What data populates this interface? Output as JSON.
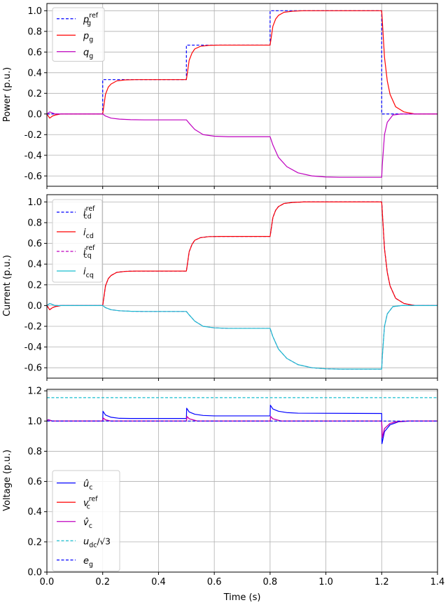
{
  "figure": {
    "xlabel": "Time (s)",
    "xticks": [
      "0.0",
      "0.2",
      "0.4",
      "0.6",
      "0.8",
      "1.0",
      "1.2",
      "1.4"
    ],
    "xlim": [
      0,
      1.4
    ]
  },
  "chart_data": [
    {
      "type": "line",
      "ylabel": "Power (p.u.)",
      "xlim": [
        0,
        1.4
      ],
      "ylim": [
        -0.7,
        1.07
      ],
      "yticks": [
        "-0.6",
        "-0.4",
        "-0.2",
        "0.0",
        "0.2",
        "0.4",
        "0.6",
        "0.8",
        "1.0"
      ],
      "grid": true,
      "legend_position": "upper-left",
      "series": [
        {
          "name": "p_g^ref",
          "color": "#0000ff",
          "dashed": true,
          "x": [
            0.0,
            0.2,
            0.2,
            0.5,
            0.5,
            0.8,
            0.8,
            1.2,
            1.2,
            1.4
          ],
          "y": [
            0.0,
            0.0,
            0.333,
            0.333,
            0.667,
            0.667,
            1.0,
            1.0,
            0.0,
            0.0
          ]
        },
        {
          "name": "p_g",
          "color": "#ff0000",
          "dashed": false,
          "x": [
            0.0,
            0.01,
            0.02,
            0.03,
            0.05,
            0.2,
            0.21,
            0.22,
            0.23,
            0.25,
            0.28,
            0.32,
            0.4,
            0.5,
            0.51,
            0.52,
            0.53,
            0.55,
            0.58,
            0.62,
            0.7,
            0.8,
            0.81,
            0.82,
            0.83,
            0.85,
            0.88,
            0.92,
            1.0,
            1.2,
            1.21,
            1.22,
            1.23,
            1.25,
            1.28,
            1.32,
            1.4
          ],
          "y": [
            0.0,
            -0.04,
            -0.02,
            -0.01,
            0.0,
            0.0,
            0.19,
            0.26,
            0.29,
            0.32,
            0.33,
            0.333,
            0.333,
            0.333,
            0.52,
            0.59,
            0.63,
            0.655,
            0.665,
            0.667,
            0.667,
            0.667,
            0.85,
            0.92,
            0.955,
            0.985,
            0.995,
            1.0,
            1.0,
            1.0,
            0.55,
            0.32,
            0.19,
            0.07,
            0.02,
            0.0,
            0.0
          ]
        },
        {
          "name": "q_g",
          "color": "#bf00bf",
          "dashed": false,
          "x": [
            0.0,
            0.01,
            0.03,
            0.2,
            0.21,
            0.23,
            0.26,
            0.3,
            0.35,
            0.5,
            0.51,
            0.53,
            0.56,
            0.6,
            0.65,
            0.7,
            0.8,
            0.81,
            0.83,
            0.86,
            0.9,
            0.95,
            1.0,
            1.05,
            1.2,
            1.202,
            1.21,
            1.22,
            1.24,
            1.27,
            1.4
          ],
          "y": [
            0.0,
            0.02,
            0.0,
            0.0,
            -0.02,
            -0.04,
            -0.05,
            -0.055,
            -0.057,
            -0.057,
            -0.09,
            -0.15,
            -0.2,
            -0.215,
            -0.22,
            -0.22,
            -0.22,
            -0.3,
            -0.42,
            -0.51,
            -0.57,
            -0.6,
            -0.61,
            -0.613,
            -0.613,
            -0.5,
            -0.2,
            -0.08,
            -0.01,
            0.0,
            0.0
          ]
        }
      ]
    },
    {
      "type": "line",
      "ylabel": "Current (p.u.)",
      "xlim": [
        0,
        1.4
      ],
      "ylim": [
        -0.7,
        1.07
      ],
      "yticks": [
        "-0.6",
        "-0.4",
        "-0.2",
        "0.0",
        "0.2",
        "0.4",
        "0.6",
        "0.8",
        "1.0"
      ],
      "grid": true,
      "legend_position": "upper-left",
      "series": [
        {
          "name": "i_cd^ref",
          "color": "#0000ff",
          "dashed": true,
          "x": [
            0.0,
            0.01,
            0.02,
            0.03,
            0.05,
            0.2,
            0.21,
            0.22,
            0.23,
            0.25,
            0.28,
            0.32,
            0.4,
            0.5,
            0.51,
            0.52,
            0.53,
            0.55,
            0.58,
            0.62,
            0.7,
            0.8,
            0.81,
            0.82,
            0.83,
            0.85,
            0.88,
            0.92,
            1.0,
            1.2,
            1.21,
            1.22,
            1.23,
            1.25,
            1.28,
            1.32,
            1.4
          ],
          "y": [
            0.0,
            -0.04,
            -0.02,
            -0.01,
            0.0,
            0.0,
            0.19,
            0.26,
            0.29,
            0.32,
            0.33,
            0.333,
            0.333,
            0.333,
            0.52,
            0.59,
            0.63,
            0.655,
            0.665,
            0.667,
            0.667,
            0.667,
            0.85,
            0.92,
            0.955,
            0.985,
            0.995,
            1.0,
            1.0,
            1.0,
            0.55,
            0.32,
            0.19,
            0.07,
            0.02,
            0.0,
            0.0
          ]
        },
        {
          "name": "i_cd",
          "color": "#ff0000",
          "dashed": false,
          "x": [
            0.0,
            0.01,
            0.02,
            0.03,
            0.05,
            0.2,
            0.21,
            0.22,
            0.23,
            0.25,
            0.28,
            0.32,
            0.4,
            0.5,
            0.51,
            0.52,
            0.53,
            0.55,
            0.58,
            0.62,
            0.7,
            0.8,
            0.81,
            0.82,
            0.83,
            0.85,
            0.88,
            0.92,
            1.0,
            1.2,
            1.21,
            1.22,
            1.23,
            1.25,
            1.28,
            1.32,
            1.4
          ],
          "y": [
            0.0,
            -0.04,
            -0.02,
            -0.01,
            0.0,
            0.0,
            0.19,
            0.26,
            0.29,
            0.32,
            0.33,
            0.333,
            0.333,
            0.333,
            0.52,
            0.59,
            0.63,
            0.655,
            0.665,
            0.667,
            0.667,
            0.667,
            0.85,
            0.92,
            0.955,
            0.985,
            0.995,
            1.0,
            1.0,
            1.0,
            0.55,
            0.32,
            0.19,
            0.07,
            0.02,
            0.0,
            0.0
          ]
        },
        {
          "name": "i_cq^ref",
          "color": "#bf00bf",
          "dashed": true,
          "x": [
            0.0,
            0.01,
            0.03,
            0.2,
            0.21,
            0.23,
            0.26,
            0.3,
            0.35,
            0.5,
            0.51,
            0.53,
            0.56,
            0.6,
            0.65,
            0.7,
            0.8,
            0.81,
            0.83,
            0.86,
            0.9,
            0.95,
            1.0,
            1.05,
            1.2,
            1.202,
            1.21,
            1.22,
            1.24,
            1.27,
            1.4
          ],
          "y": [
            0.0,
            0.02,
            0.0,
            0.0,
            -0.02,
            -0.04,
            -0.05,
            -0.055,
            -0.057,
            -0.057,
            -0.09,
            -0.15,
            -0.2,
            -0.215,
            -0.22,
            -0.22,
            -0.22,
            -0.3,
            -0.42,
            -0.51,
            -0.57,
            -0.6,
            -0.61,
            -0.613,
            -0.613,
            -0.5,
            -0.2,
            -0.08,
            -0.01,
            0.0,
            0.0
          ]
        },
        {
          "name": "i_cq",
          "color": "#17becf",
          "dashed": false,
          "x": [
            0.0,
            0.01,
            0.03,
            0.2,
            0.21,
            0.23,
            0.26,
            0.3,
            0.35,
            0.5,
            0.51,
            0.53,
            0.56,
            0.6,
            0.65,
            0.7,
            0.8,
            0.81,
            0.83,
            0.86,
            0.9,
            0.95,
            1.0,
            1.05,
            1.2,
            1.202,
            1.21,
            1.22,
            1.24,
            1.27,
            1.4
          ],
          "y": [
            0.0,
            0.02,
            0.0,
            0.0,
            -0.02,
            -0.04,
            -0.05,
            -0.055,
            -0.057,
            -0.057,
            -0.09,
            -0.15,
            -0.2,
            -0.215,
            -0.22,
            -0.22,
            -0.22,
            -0.3,
            -0.42,
            -0.51,
            -0.57,
            -0.6,
            -0.61,
            -0.613,
            -0.613,
            -0.5,
            -0.2,
            -0.08,
            -0.01,
            0.0,
            0.0
          ]
        }
      ]
    },
    {
      "type": "line",
      "ylabel": "Voltage (p.u.)",
      "xlim": [
        0,
        1.4
      ],
      "ylim": [
        0,
        1.21
      ],
      "yticks": [
        "0.0",
        "0.2",
        "0.4",
        "0.6",
        "0.8",
        "1.0",
        "1.2"
      ],
      "grid": true,
      "legend_position": "lower-left",
      "series": [
        {
          "name": "û_c",
          "color": "#0000ff",
          "dashed": false,
          "x": [
            0.0,
            0.005,
            0.02,
            0.2,
            0.201,
            0.21,
            0.23,
            0.26,
            0.3,
            0.5,
            0.501,
            0.51,
            0.53,
            0.56,
            0.6,
            0.8,
            0.801,
            0.81,
            0.83,
            0.86,
            0.9,
            1.2,
            1.201,
            1.21,
            1.23,
            1.26,
            1.3,
            1.4
          ],
          "y": [
            1.0,
            1.01,
            1.0,
            1.0,
            1.065,
            1.04,
            1.025,
            1.018,
            1.017,
            1.017,
            1.085,
            1.06,
            1.045,
            1.037,
            1.034,
            1.034,
            1.105,
            1.08,
            1.065,
            1.056,
            1.052,
            1.05,
            0.85,
            0.93,
            0.975,
            0.995,
            1.0,
            1.0
          ]
        },
        {
          "name": "v_c^ref",
          "color": "#ff0000",
          "dashed": false,
          "x": [
            0.0,
            0.005,
            0.02,
            0.2,
            0.202,
            0.21,
            0.23,
            0.5,
            0.502,
            0.51,
            0.54,
            0.8,
            0.802,
            0.81,
            0.84,
            1.2,
            1.202,
            1.21,
            1.23,
            1.26,
            1.3,
            1.4
          ],
          "y": [
            1.0,
            1.008,
            1.0,
            1.0,
            1.02,
            1.008,
            1.0,
            1.0,
            1.03,
            1.015,
            1.0,
            1.0,
            1.03,
            1.015,
            1.0,
            1.0,
            0.89,
            0.95,
            0.985,
            0.998,
            1.0,
            1.0
          ]
        },
        {
          "name": "v̂_c",
          "color": "#bf00bf",
          "dashed": false,
          "x": [
            0.0,
            0.005,
            0.02,
            0.2,
            0.202,
            0.21,
            0.23,
            0.5,
            0.502,
            0.51,
            0.54,
            0.8,
            0.802,
            0.81,
            0.84,
            1.2,
            1.202,
            1.21,
            1.23,
            1.26,
            1.3,
            1.4
          ],
          "y": [
            1.0,
            1.008,
            1.0,
            1.0,
            1.02,
            1.008,
            1.0,
            1.0,
            1.03,
            1.015,
            1.0,
            1.0,
            1.03,
            1.015,
            1.0,
            1.0,
            0.89,
            0.95,
            0.985,
            0.998,
            1.0,
            1.0
          ]
        },
        {
          "name": "u_dc/√3",
          "color": "#17becf",
          "dashed": true,
          "x": [
            0.0,
            1.4
          ],
          "y": [
            1.155,
            1.155
          ]
        },
        {
          "name": "e_g",
          "color": "#0000ff",
          "dashed": true,
          "x": [
            0.0,
            1.4
          ],
          "y": [
            1.0,
            1.0
          ]
        }
      ]
    }
  ]
}
